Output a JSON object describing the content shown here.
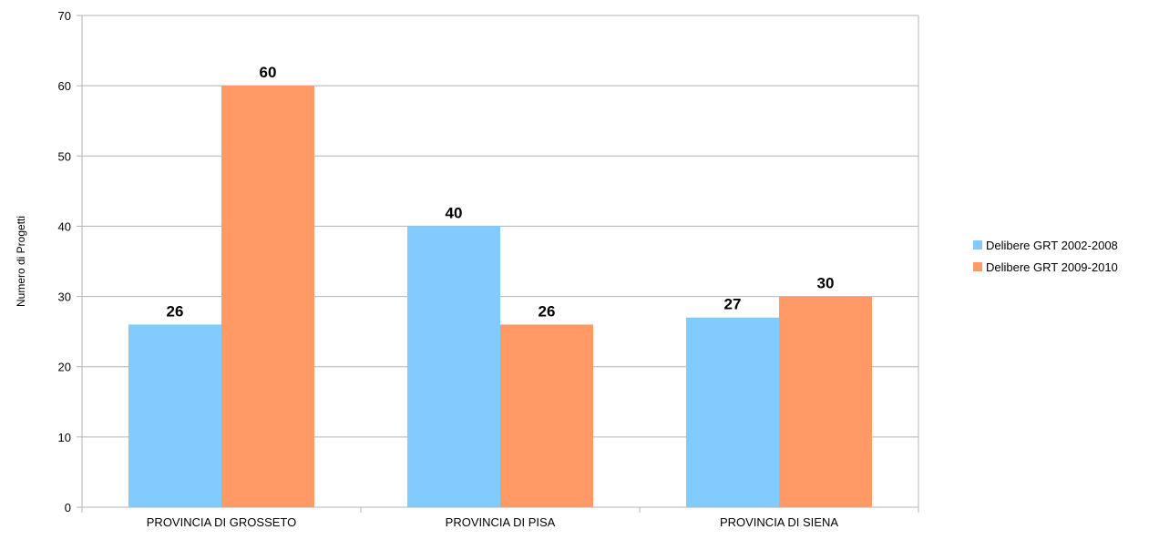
{
  "chart_data": {
    "type": "bar",
    "title": "",
    "xlabel": "",
    "ylabel": "Numero di Progetti",
    "categories": [
      "PROVINCIA DI GROSSETO",
      "PROVINCIA DI PISA",
      "PROVINCIA DI SIENA"
    ],
    "series": [
      {
        "name": "Delibere GRT 2002-2008",
        "values": [
          26,
          40,
          27
        ],
        "color": "#82cbff"
      },
      {
        "name": "Delibere GRT 2009-2010",
        "values": [
          60,
          26,
          30
        ],
        "color": "#ff9966"
      }
    ],
    "ylim": [
      0,
      70
    ],
    "yticks": [
      0,
      10,
      20,
      30,
      40,
      50,
      60,
      70
    ],
    "grid": true,
    "legend_position": "right",
    "data_labels": true
  }
}
